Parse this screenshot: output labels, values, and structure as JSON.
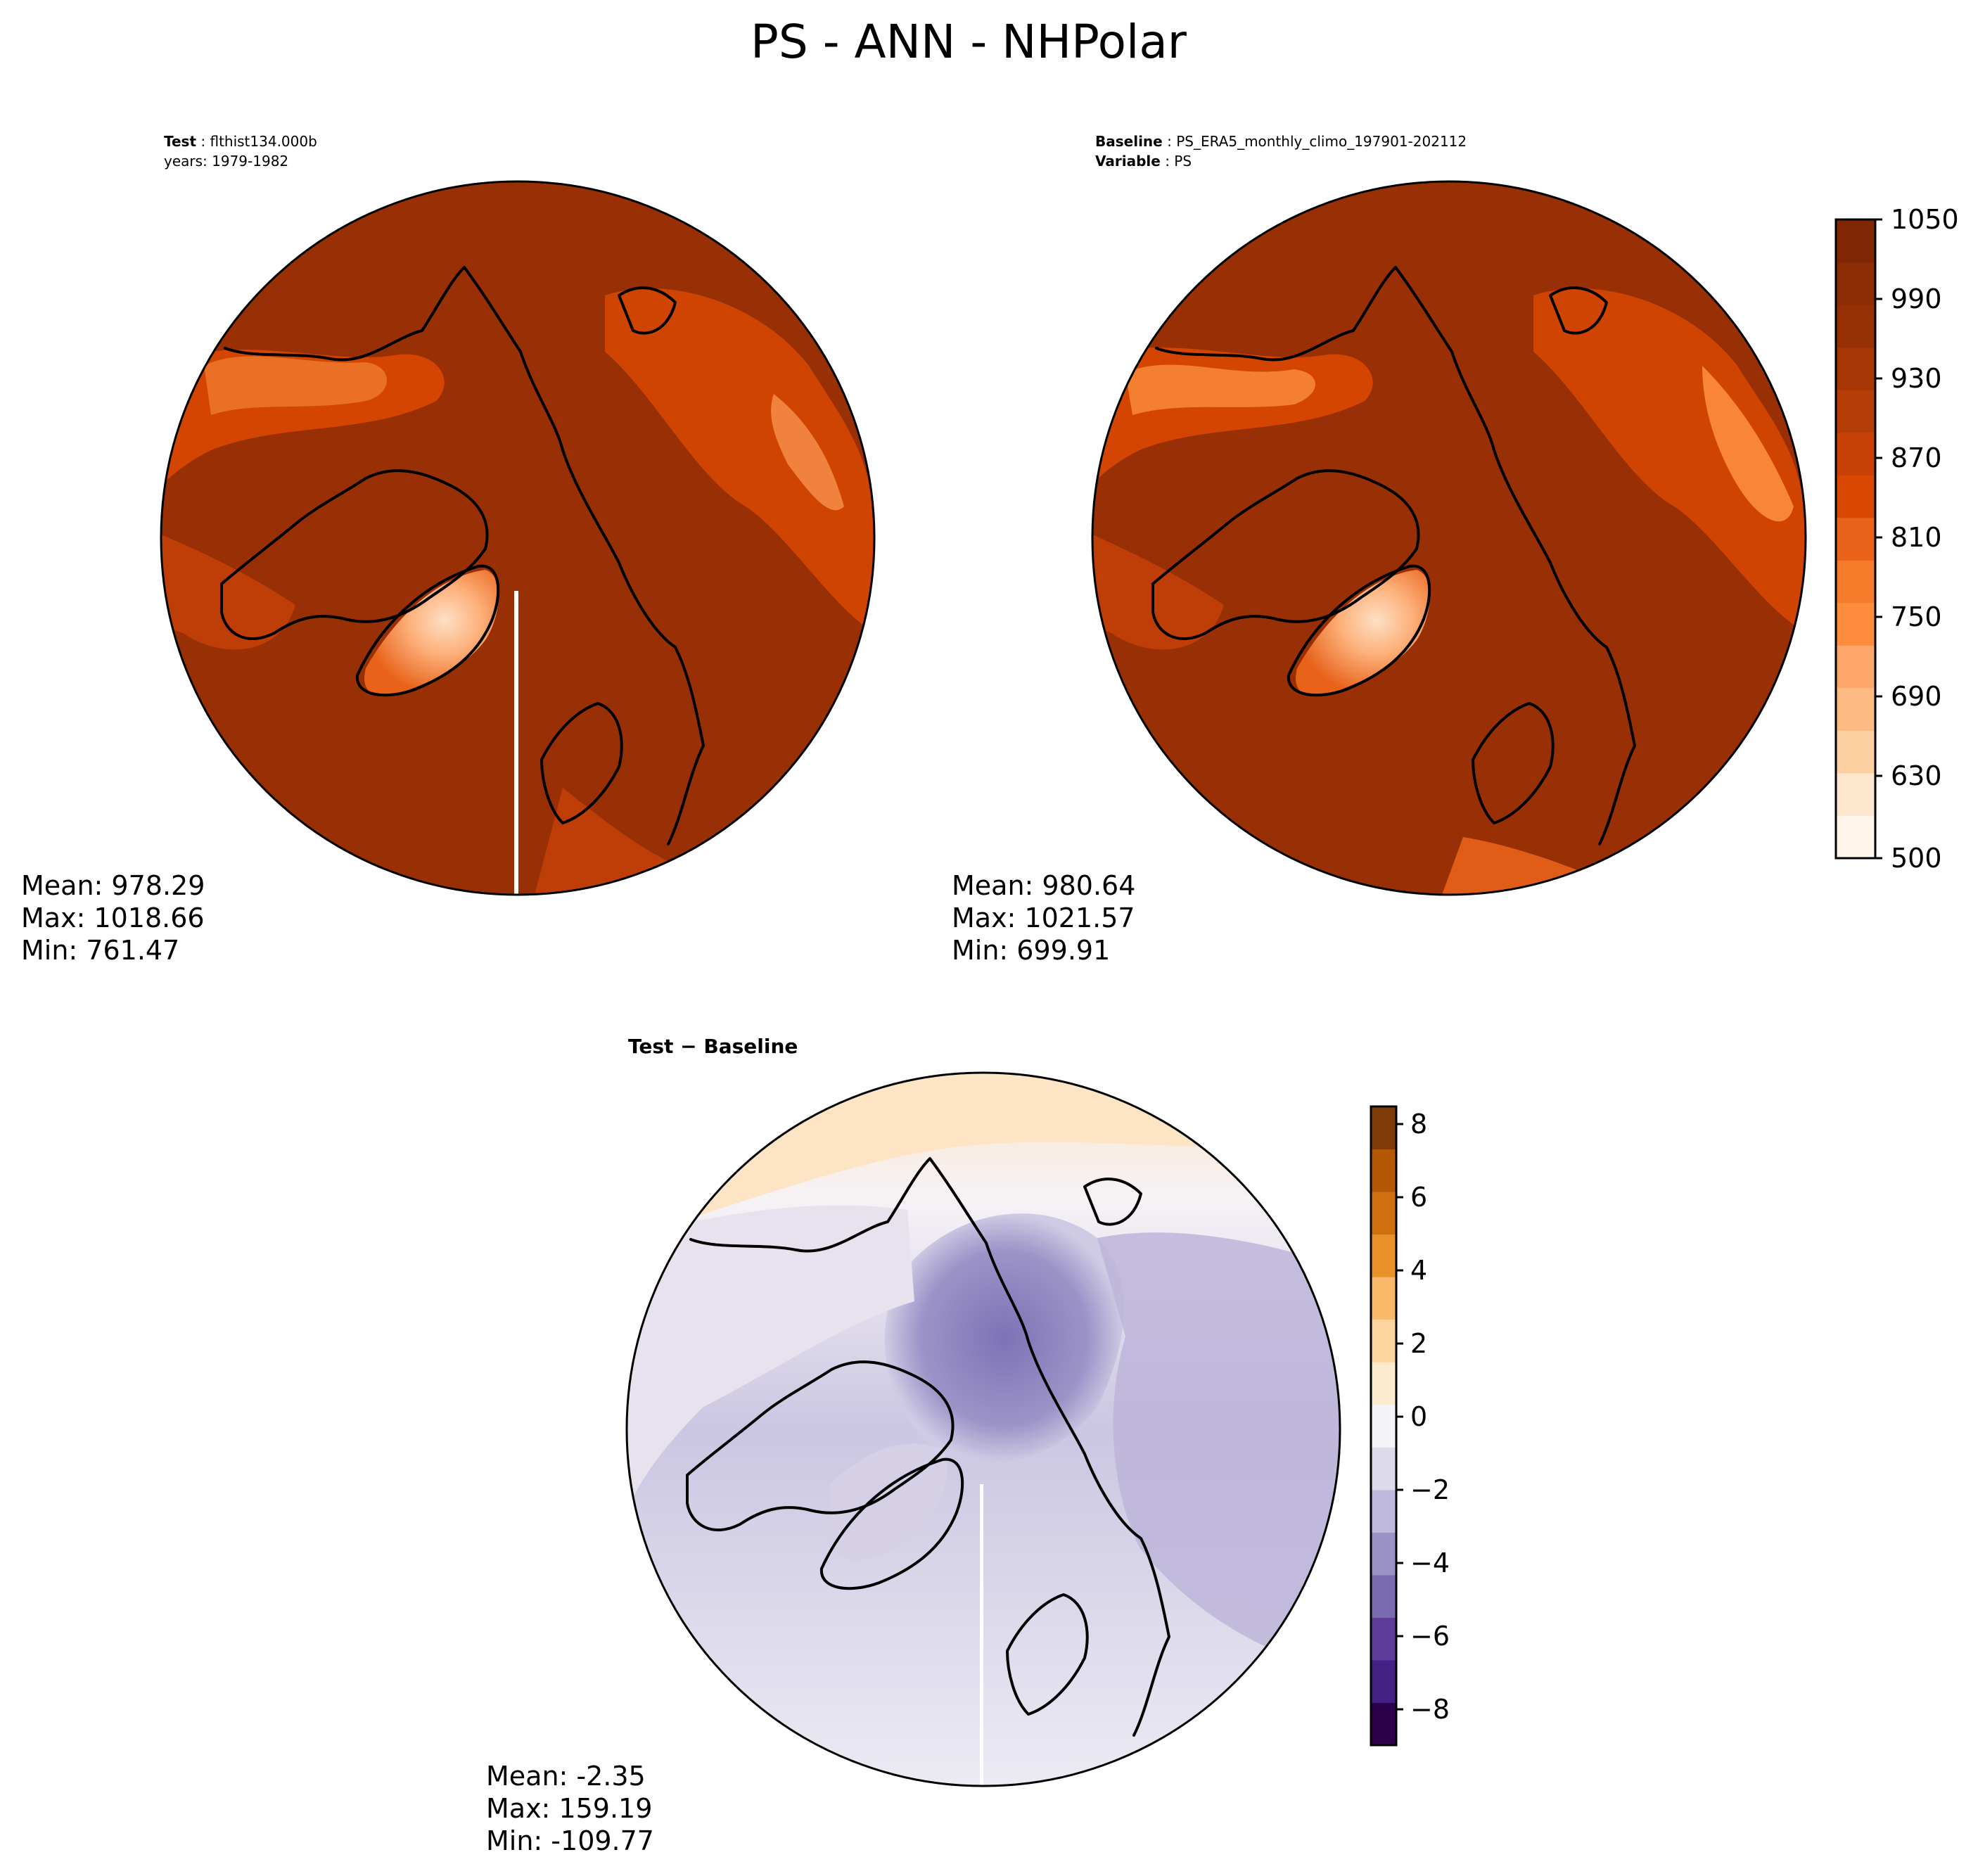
{
  "title": "PS - ANN - NHPolar",
  "panels": {
    "test": {
      "label_bold": "Test",
      "label_value": "flthist134.000b",
      "subline": "years: 1979-1982",
      "stats": {
        "mean": "Mean: 978.29",
        "max": "Max: 1018.66",
        "min": "Min: 761.47"
      }
    },
    "baseline": {
      "label_bold": "Baseline",
      "label_value": "PS_ERA5_monthly_climo_197901-202112",
      "label2_bold": "Variable",
      "label2_value": "PS",
      "stats": {
        "mean": "Mean: 980.64",
        "max": "Max: 1021.57",
        "min": "Min: 699.91"
      }
    },
    "diff": {
      "label": "Test − Baseline",
      "stats": {
        "mean": "Mean: -2.35",
        "max": "Max: 159.19",
        "min": "Min: -109.77"
      }
    }
  },
  "colorbars": {
    "main": {
      "ticks": [
        "1050",
        "990",
        "930",
        "870",
        "810",
        "750",
        "690",
        "630",
        "500"
      ],
      "colors": [
        "#fff5eb",
        "#fee6ce",
        "#fdd0a2",
        "#fdbb84",
        "#fda66a",
        "#fd8d3c",
        "#f57a2a",
        "#e8621a",
        "#d94801",
        "#c84207",
        "#b53d08",
        "#a63603",
        "#953004",
        "#8a2d04",
        "#7f2704"
      ]
    },
    "diff": {
      "ticks": [
        "8",
        "6",
        "4",
        "2",
        "0",
        "−2",
        "−4",
        "−6",
        "−8"
      ],
      "colors": [
        "#2d004b",
        "#452084",
        "#5e3c99",
        "#7b6bb0",
        "#9b93c5",
        "#bfbadb",
        "#dcdaeb",
        "#f4f4f6",
        "#fdebd0",
        "#fdd49e",
        "#f9b86a",
        "#e9922a",
        "#cf6f10",
        "#b35806",
        "#7f3b08"
      ]
    }
  },
  "colors": {
    "land_base": "#993005",
    "ocean_base": "#993005",
    "diff_ocean": "#dcd8ec",
    "diff_arctic": "#8c82c0",
    "diff_south": "#fde7c9"
  }
}
